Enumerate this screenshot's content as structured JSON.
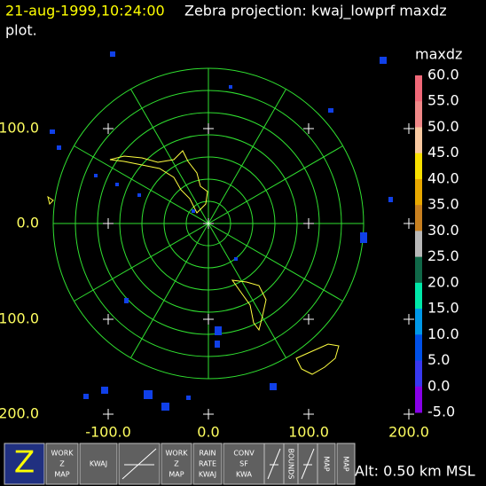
{
  "header": {
    "timestamp": "21-aug-1999,10:24:00",
    "title": "Zebra projection: kwaj_lowprf maxdz",
    "title_line2": "plot."
  },
  "axes": {
    "y_labels": [
      "100.0",
      "0.0",
      "100.0",
      "200.0"
    ],
    "x_labels": [
      "-100.0",
      "0.0",
      "100.0",
      "200.0"
    ]
  },
  "colorbar": {
    "title": "maxdz",
    "labels": [
      "60.0",
      "55.0",
      "50.0",
      "45.0",
      "40.0",
      "35.0",
      "30.0",
      "25.0",
      "20.0",
      "15.0",
      "10.0",
      "5.0",
      "0.0",
      "-5.0"
    ],
    "colors": [
      "#f06878",
      "#f08888",
      "#f8c8a0",
      "#f8e000",
      "#e8a800",
      "#c88020",
      "#b8b8b8",
      "#106848",
      "#00e8a8",
      "#0098e8",
      "#0050e8",
      "#3838f0",
      "#8800e8"
    ]
  },
  "toolbar": [
    {
      "lines": [
        "Z"
      ]
    },
    {
      "lines": [
        "WORK",
        "Z",
        "MAP"
      ]
    },
    {
      "lines": [
        "KWAJ"
      ]
    },
    {
      "lines": [
        "WORK",
        "Z",
        "MAP"
      ]
    },
    {
      "lines": [
        "RAIN",
        "RATE",
        "KWAJ"
      ]
    },
    {
      "lines": [
        "CONV",
        "SF",
        "KWA"
      ]
    },
    {
      "lines": [
        "BOUNDS"
      ]
    },
    {
      "lines": [
        "MAP"
      ]
    },
    {
      "lines": [
        "MAP"
      ]
    }
  ],
  "status": "Alt: 0.50 km MSL"
}
